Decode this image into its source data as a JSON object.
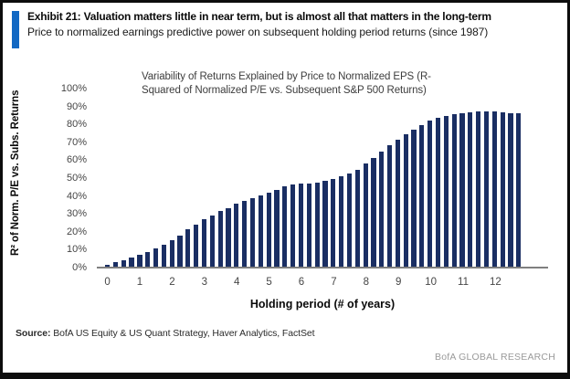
{
  "header": {
    "exhibit_title": "Exhibit 21: Valuation matters little in near term, but is almost all that matters in the long-term",
    "subtitle": "Price to normalized earnings predictive power on subsequent holding period returns (since 1987)"
  },
  "chart_data": {
    "type": "bar",
    "title": "Variability of Returns Explained by Price to Normalized EPS (R-Squared of Normalized P/E vs. Subsequent S&P 500 Returns)",
    "ylabel": "R² of Norm. P/E vs. Subs. Returns",
    "xlabel": "Holding period (# of years)",
    "ylim": [
      0,
      100
    ],
    "y_ticks": [
      "0%",
      "10%",
      "20%",
      "30%",
      "40%",
      "50%",
      "60%",
      "70%",
      "80%",
      "90%",
      "100%"
    ],
    "x_ticks": [
      0,
      1,
      2,
      3,
      4,
      5,
      6,
      7,
      8,
      9,
      10,
      11,
      12
    ],
    "grid": false,
    "legend": "none",
    "x_unit": "years (quarterly bars)",
    "x": [
      0,
      0.25,
      0.5,
      0.75,
      1,
      1.25,
      1.5,
      1.75,
      2,
      2.25,
      2.5,
      2.75,
      3,
      3.25,
      3.5,
      3.75,
      4,
      4.25,
      4.5,
      4.75,
      5,
      5.25,
      5.5,
      5.75,
      6,
      6.25,
      6.5,
      6.75,
      7,
      7.25,
      7.5,
      7.75,
      8,
      8.25,
      8.5,
      8.75,
      9,
      9.25,
      9.5,
      9.75,
      10,
      10.25,
      10.5,
      10.75,
      11,
      11.25,
      11.5,
      11.75,
      12,
      12.25,
      12.5,
      12.75
    ],
    "values": [
      1.5,
      3,
      4,
      5.5,
      7,
      8.5,
      10.5,
      13,
      15.5,
      18,
      21.5,
      24,
      27,
      29,
      31.5,
      33,
      35.5,
      37.5,
      39,
      40.5,
      42,
      43.5,
      45.5,
      46.5,
      47,
      47,
      47.5,
      48.5,
      49.5,
      51,
      52.5,
      54.5,
      58,
      61.5,
      65,
      68.5,
      71.5,
      74.5,
      77,
      79.5,
      82,
      83.5,
      84.5,
      85.5,
      86.5,
      87,
      87.5,
      87.5,
      87.5,
      87,
      86.5,
      86
    ]
  },
  "footer": {
    "source_label": "Source:",
    "source_text": " BofA US Equity & US Quant Strategy, Haver Analytics, FactSet",
    "brand": "BofA GLOBAL RESEARCH"
  },
  "colors": {
    "accent_bar": "#1268c3",
    "bar": "#1a2e63",
    "axis_line": "#7f7f7f",
    "brand_text": "#9a9a9a"
  }
}
